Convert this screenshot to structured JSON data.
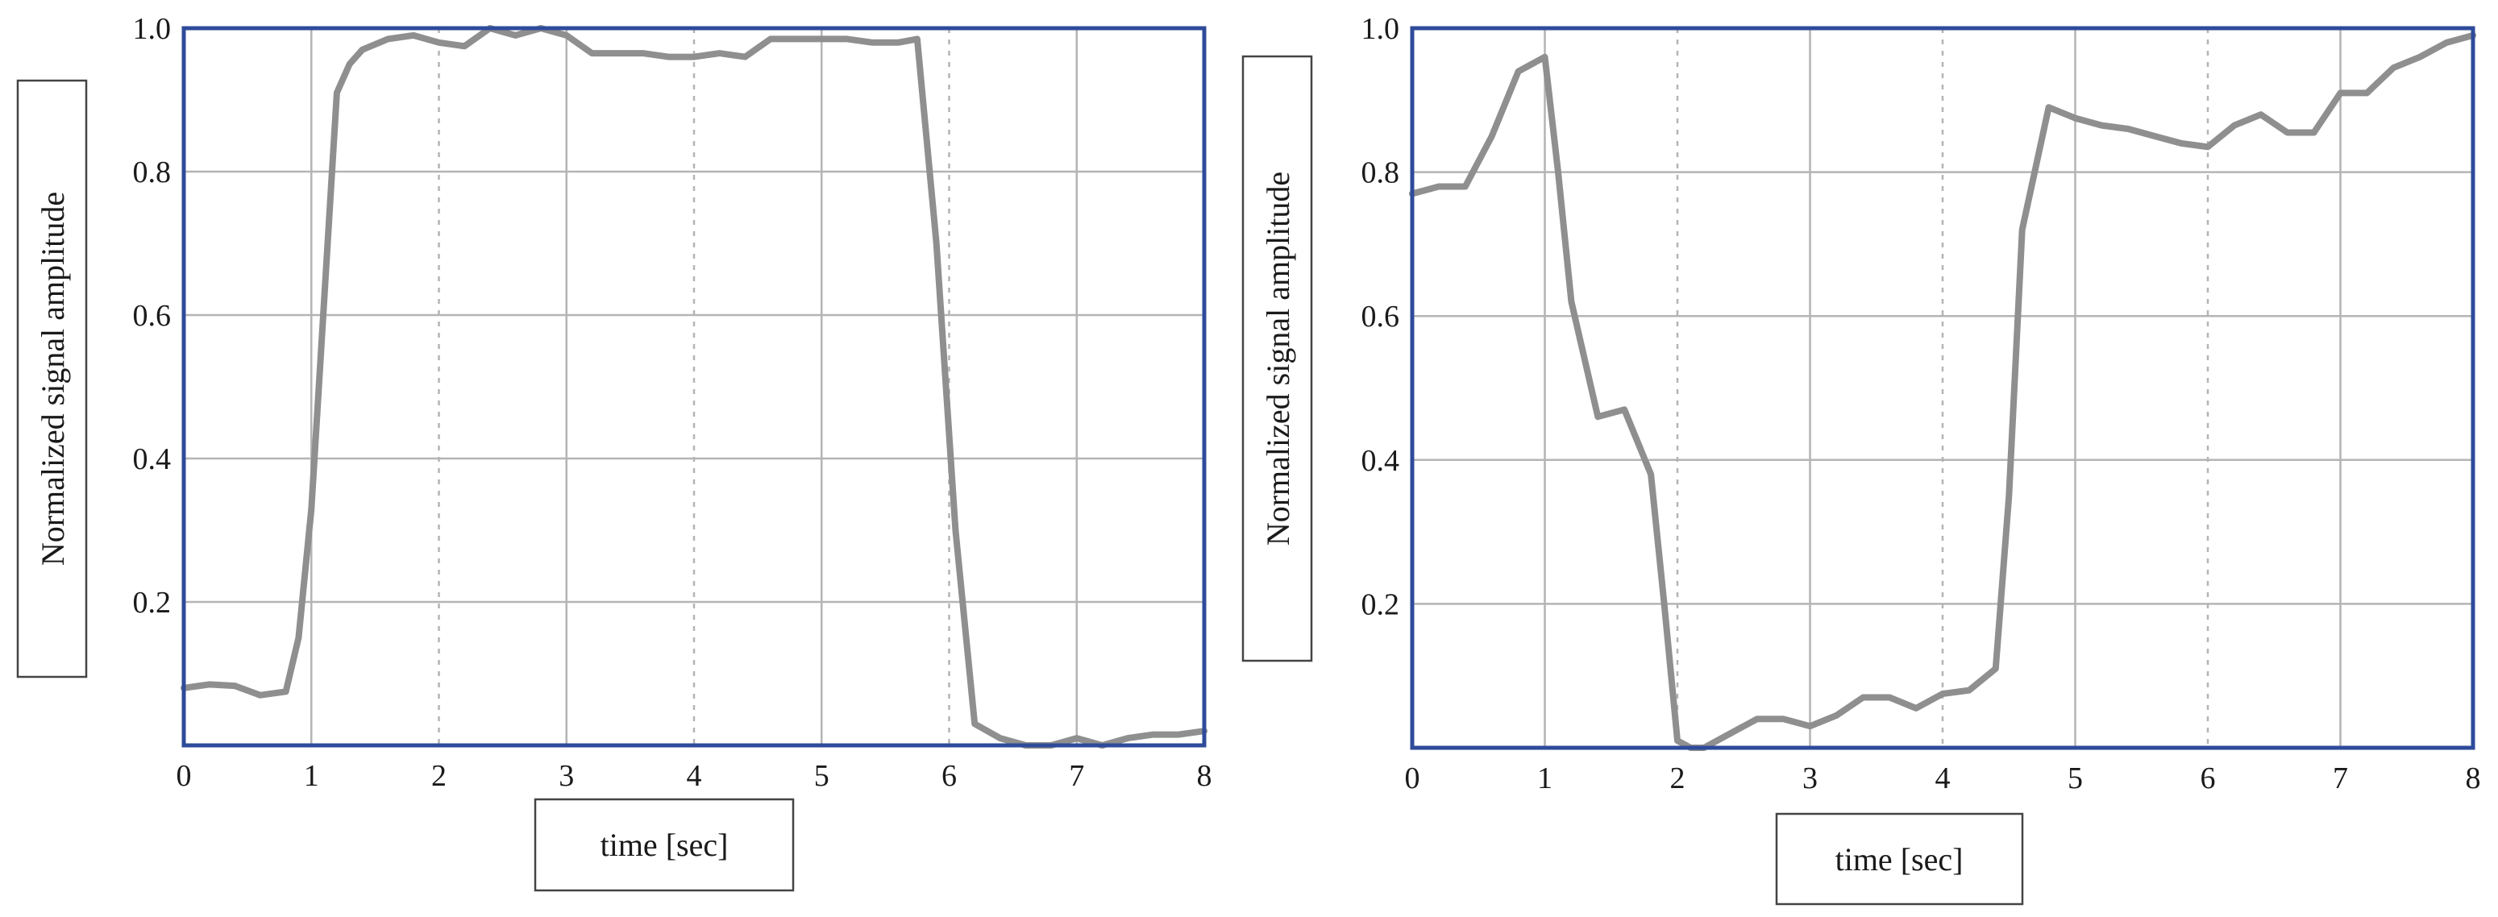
{
  "colors": {
    "frame": "#2e4b9a",
    "series": "#8f8f8f",
    "grid": "#b4b4b4"
  },
  "chart_data": [
    {
      "type": "line",
      "xlabel": "time [sec]",
      "ylabel": "Normalized signal amplitude",
      "xlim": [
        0,
        8
      ],
      "ylim": [
        0,
        1.0
      ],
      "x_ticks": [
        "0",
        "1",
        "2",
        "3",
        "4",
        "5",
        "6",
        "7",
        "8"
      ],
      "y_ticks": [
        "0.2",
        "0.4",
        "0.6",
        "0.8",
        "1.0"
      ],
      "grid": "solid lines at odd seconds and y ticks, dotted lines at even seconds",
      "series": [
        {
          "x": [
            0,
            0.2,
            0.4,
            0.6,
            0.8,
            0.9,
            1.0,
            1.1,
            1.2,
            1.3,
            1.4,
            1.6,
            1.8,
            2.0,
            2.2,
            2.4,
            2.6,
            2.8,
            3.0,
            3.2,
            3.4,
            3.6,
            3.8,
            4.0,
            4.2,
            4.4,
            4.6,
            4.8,
            5.0,
            5.2,
            5.4,
            5.6,
            5.75,
            5.9,
            6.05,
            6.2,
            6.4,
            6.6,
            6.8,
            7.0,
            7.2,
            7.4,
            7.6,
            7.8,
            8.0
          ],
          "y": [
            0.08,
            0.085,
            0.083,
            0.07,
            0.075,
            0.15,
            0.33,
            0.62,
            0.91,
            0.95,
            0.97,
            0.985,
            0.99,
            0.98,
            0.975,
            1.0,
            0.99,
            1.0,
            0.99,
            0.965,
            0.965,
            0.965,
            0.96,
            0.96,
            0.965,
            0.96,
            0.985,
            0.985,
            0.985,
            0.985,
            0.98,
            0.98,
            0.985,
            0.7,
            0.3,
            0.03,
            0.01,
            0.0,
            0.0,
            0.01,
            0.0,
            0.01,
            0.015,
            0.015,
            0.02
          ]
        }
      ]
    },
    {
      "type": "line",
      "xlabel": "time [sec]",
      "ylabel": "Normalized signal amplitude",
      "xlim": [
        0,
        8
      ],
      "ylim": [
        0,
        1.0
      ],
      "x_ticks": [
        "0",
        "1",
        "2",
        "3",
        "4",
        "5",
        "6",
        "7",
        "8"
      ],
      "y_ticks": [
        "0.2",
        "0.4",
        "0.6",
        "0.8",
        "1.0"
      ],
      "grid": "solid lines at odd seconds and y ticks, dotted lines at even seconds",
      "series": [
        {
          "x": [
            0,
            0.2,
            0.4,
            0.6,
            0.8,
            0.9,
            1.0,
            1.1,
            1.2,
            1.4,
            1.6,
            1.8,
            1.9,
            2.0,
            2.1,
            2.2,
            2.4,
            2.6,
            2.8,
            3.0,
            3.2,
            3.4,
            3.6,
            3.8,
            4.0,
            4.2,
            4.4,
            4.5,
            4.6,
            4.8,
            5.0,
            5.2,
            5.4,
            5.6,
            5.8,
            6.0,
            6.2,
            6.4,
            6.6,
            6.8,
            7.0,
            7.2,
            7.4,
            7.6,
            7.8,
            8.0
          ],
          "y": [
            0.77,
            0.78,
            0.78,
            0.85,
            0.94,
            0.95,
            0.96,
            0.8,
            0.62,
            0.46,
            0.47,
            0.38,
            0.2,
            0.01,
            0.0,
            0.0,
            0.02,
            0.04,
            0.04,
            0.03,
            0.045,
            0.07,
            0.07,
            0.055,
            0.075,
            0.08,
            0.11,
            0.35,
            0.72,
            0.89,
            0.875,
            0.865,
            0.86,
            0.85,
            0.84,
            0.835,
            0.865,
            0.88,
            0.855,
            0.855,
            0.91,
            0.91,
            0.945,
            0.96,
            0.98,
            0.99
          ]
        }
      ]
    }
  ]
}
